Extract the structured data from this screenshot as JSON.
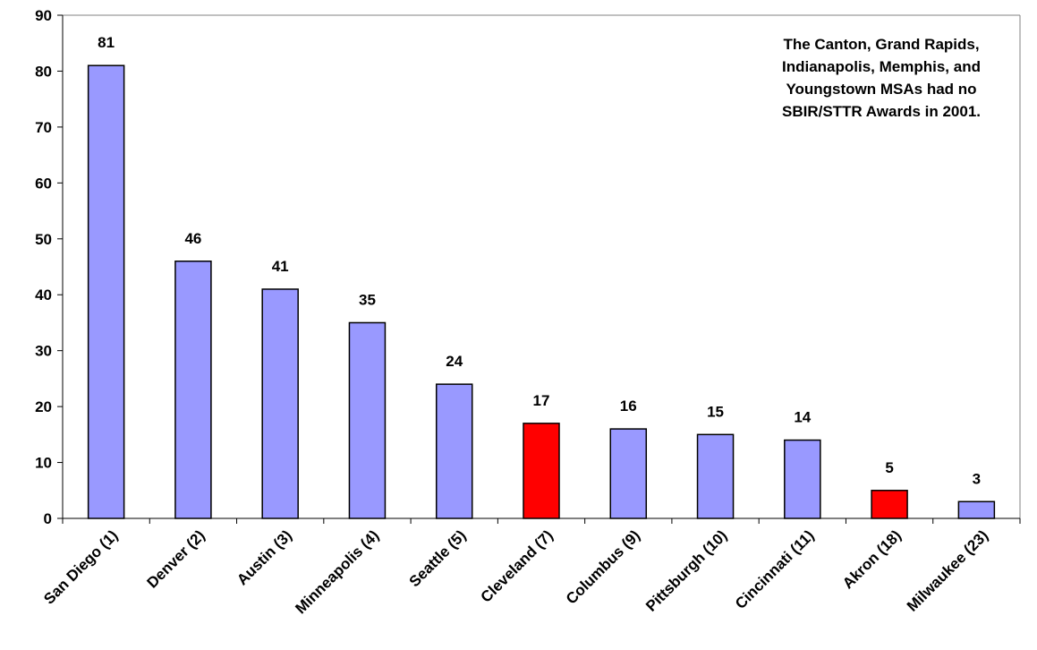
{
  "chart_data": {
    "type": "bar",
    "categories": [
      "San Diego (1)",
      "Denver (2)",
      "Austin (3)",
      "Minneapolis (4)",
      "Seattle (5)",
      "Cleveland (7)",
      "Columbus (9)",
      "Pittsburgh (10)",
      "Cincinnati (11)",
      "Akron (18)",
      "Milwaukee (23)"
    ],
    "values": [
      81,
      46,
      41,
      35,
      24,
      17,
      16,
      15,
      14,
      5,
      3
    ],
    "data_labels": [
      "81",
      "46",
      "41",
      "35",
      "24",
      "17",
      "16",
      "15",
      "14",
      "5",
      "3"
    ],
    "highlighted": [
      false,
      false,
      false,
      false,
      false,
      true,
      false,
      false,
      false,
      true,
      false
    ],
    "colors": {
      "default": "#9999ff",
      "highlight": "#ff0000",
      "stroke": "#000000"
    },
    "ylim": [
      0,
      90
    ],
    "yticks": [
      0,
      10,
      20,
      30,
      40,
      50,
      60,
      70,
      80,
      90
    ],
    "title": "",
    "xlabel": "",
    "ylabel": "",
    "grid": false,
    "annotation": [
      "The Canton, Grand Rapids,",
      "Indianapolis, Memphis, and",
      "Youngstown MSAs had no",
      "SBIR/STTR Awards in 2001."
    ]
  }
}
